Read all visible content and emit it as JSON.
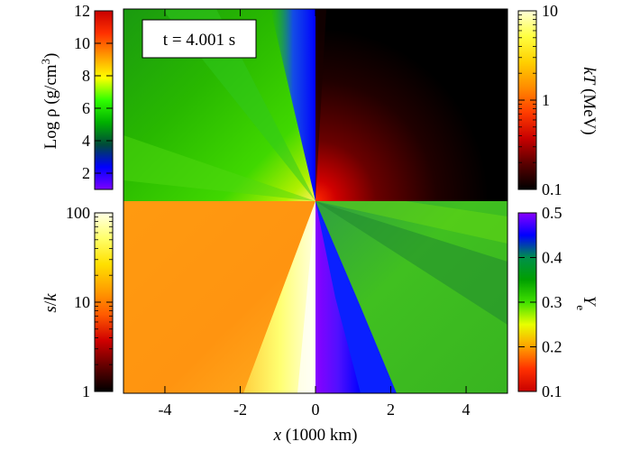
{
  "chart_data": {
    "type": "heatmap",
    "time_label": "t = 4.001 s",
    "xlabel_var": "x",
    "xlabel_units": " (1000 km)",
    "xlim": [
      -5.1,
      5.1
    ],
    "x_ticks": [
      -4,
      -2,
      0,
      2,
      4
    ],
    "x_tick_labels": [
      "-4",
      "-2",
      "0",
      "2",
      "4"
    ],
    "quadrants": [
      {
        "position": "top-left",
        "quantity": "density"
      },
      {
        "position": "top-right",
        "quantity": "temperature"
      },
      {
        "position": "bottom-left",
        "quantity": "entropy"
      },
      {
        "position": "bottom-right",
        "quantity": "electron fraction"
      }
    ],
    "colorbars": {
      "density": {
        "side": "left-top",
        "label_prefix": "Log ",
        "label_symbol": "ρ",
        "label_units": " (g/cm",
        "label_units_sup": "3",
        "label_units_close": ")",
        "scale": "linear",
        "range": [
          1,
          12
        ],
        "ticks": [
          2,
          4,
          6,
          8,
          10,
          12
        ],
        "tick_labels": [
          "2",
          "4",
          "6",
          "8",
          "10",
          "12"
        ],
        "colors": [
          "#7a00ff",
          "#0000ff",
          "#004a3a",
          "#00b000",
          "#30ff00",
          "#ffff00",
          "#ff9800",
          "#ff3000",
          "#c80000"
        ]
      },
      "temperature": {
        "side": "right-top",
        "label_var": "kT",
        "label_units": " (MeV)",
        "scale": "log",
        "range": [
          0.1,
          10
        ],
        "ticks": [
          0.1,
          1,
          10
        ],
        "tick_labels": [
          "0.1",
          "1",
          "10"
        ],
        "colors": [
          "#000000",
          "#5a0000",
          "#c80000",
          "#ff3c00",
          "#ff8c00",
          "#ffd000",
          "#ffff40",
          "#ffffd8"
        ]
      },
      "entropy": {
        "side": "left-bottom",
        "label_var": "s",
        "label_sep": "/",
        "label_var2": "k",
        "scale": "log",
        "range": [
          1,
          100
        ],
        "ticks": [
          1,
          10,
          100
        ],
        "tick_labels": [
          "1",
          "10",
          "100"
        ],
        "colors": [
          "#000000",
          "#640000",
          "#d00000",
          "#ff5a00",
          "#ffa000",
          "#ffe000",
          "#ffff6a",
          "#ffffe6"
        ]
      },
      "electron_fraction": {
        "side": "right-bottom",
        "label_var": "Y",
        "label_sub": "e",
        "scale": "linear",
        "range": [
          0.1,
          0.5
        ],
        "ticks": [
          0.1,
          0.2,
          0.3,
          0.4,
          0.5
        ],
        "tick_labels": [
          "0.1",
          "0.2",
          "0.3",
          "0.4",
          "0.5"
        ],
        "colors": [
          "#c80000",
          "#ff3000",
          "#ffa000",
          "#e8ff00",
          "#40e000",
          "#00a000",
          "#00904a",
          "#0000ff",
          "#8a00ff"
        ]
      }
    }
  }
}
